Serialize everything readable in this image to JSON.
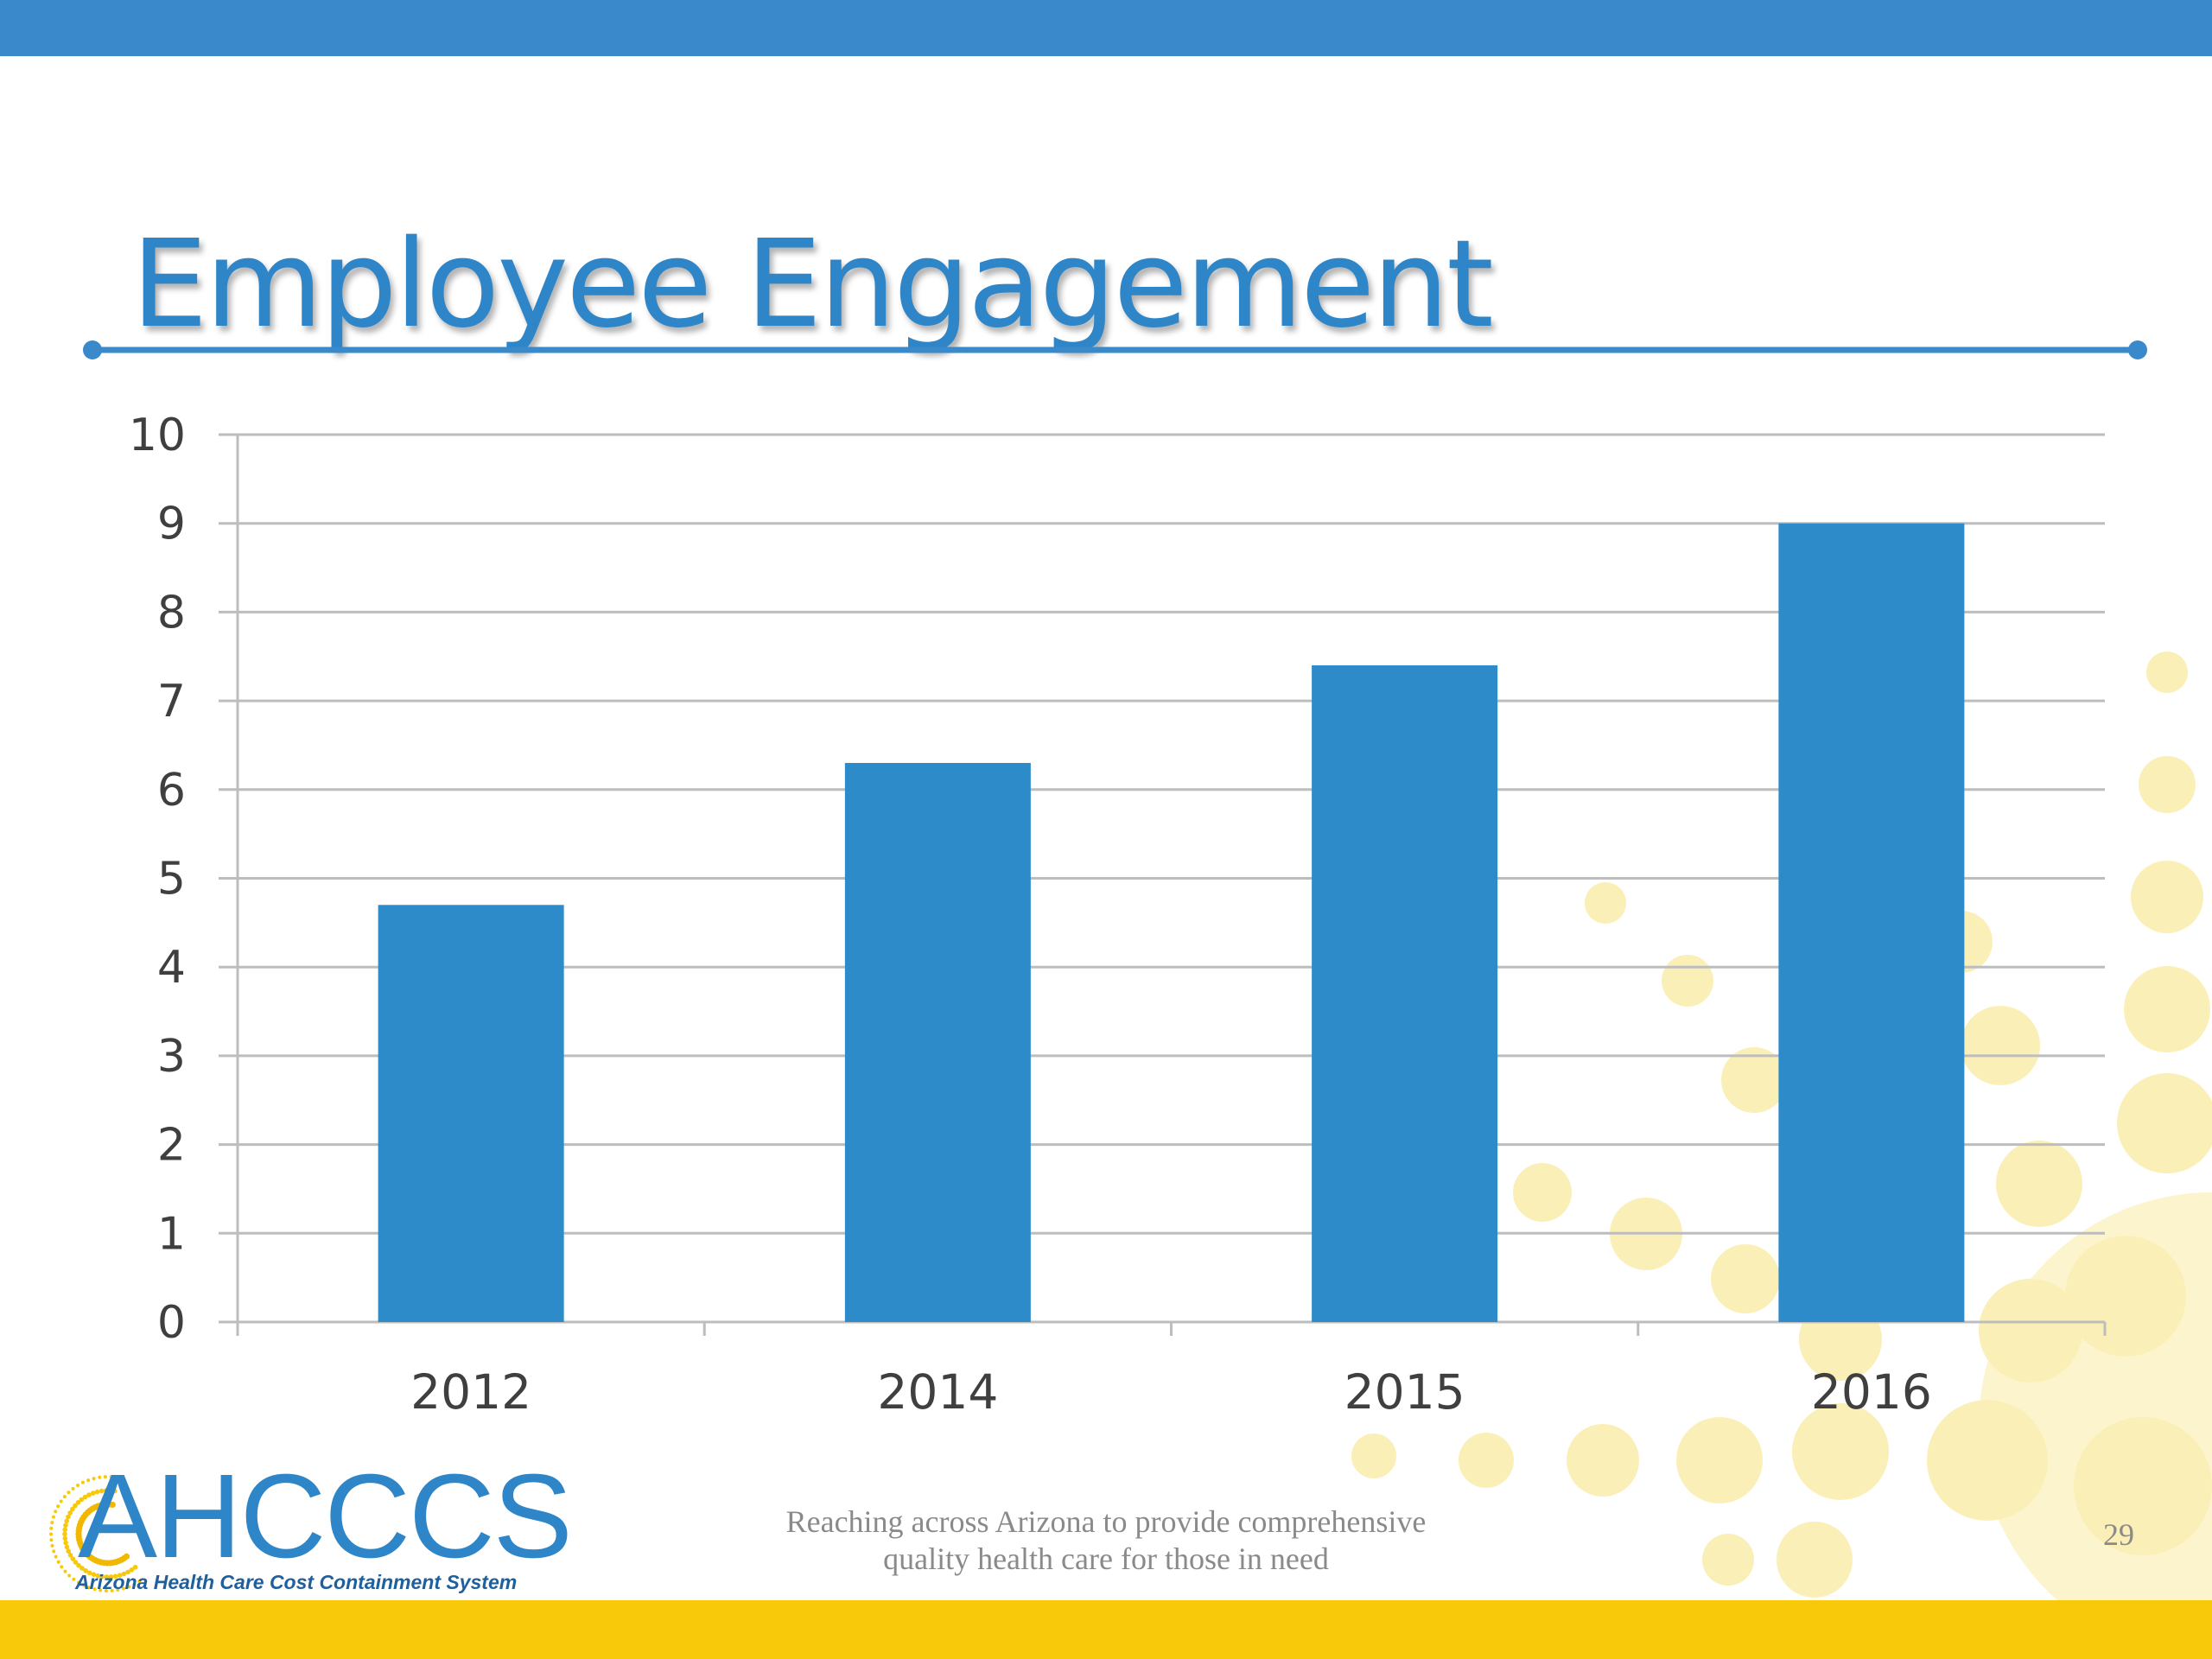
{
  "slide": {
    "title": "Employee Engagement",
    "footer_line1": "Reaching across Arizona to provide comprehensive",
    "footer_line2": "quality health care for those in need",
    "page_number": "29"
  },
  "logo": {
    "name": "AHCCCS",
    "subtitle": "Arizona Health Care Cost Containment System"
  },
  "colors": {
    "accent": "#3a8acb",
    "bar": "#2e8bca",
    "footer_band": "#f7c90a",
    "decor_dots": "#fbefb8"
  },
  "chart_data": {
    "type": "bar",
    "categories": [
      "2012",
      "2014",
      "2015",
      "2016"
    ],
    "values": [
      4.7,
      6.3,
      7.4,
      9
    ],
    "title": "",
    "xlabel": "",
    "ylabel": "",
    "ylim": [
      0,
      10
    ],
    "yticks": [
      0,
      1,
      2,
      3,
      4,
      5,
      6,
      7,
      8,
      9,
      10
    ],
    "grid": true,
    "legend": "none"
  }
}
